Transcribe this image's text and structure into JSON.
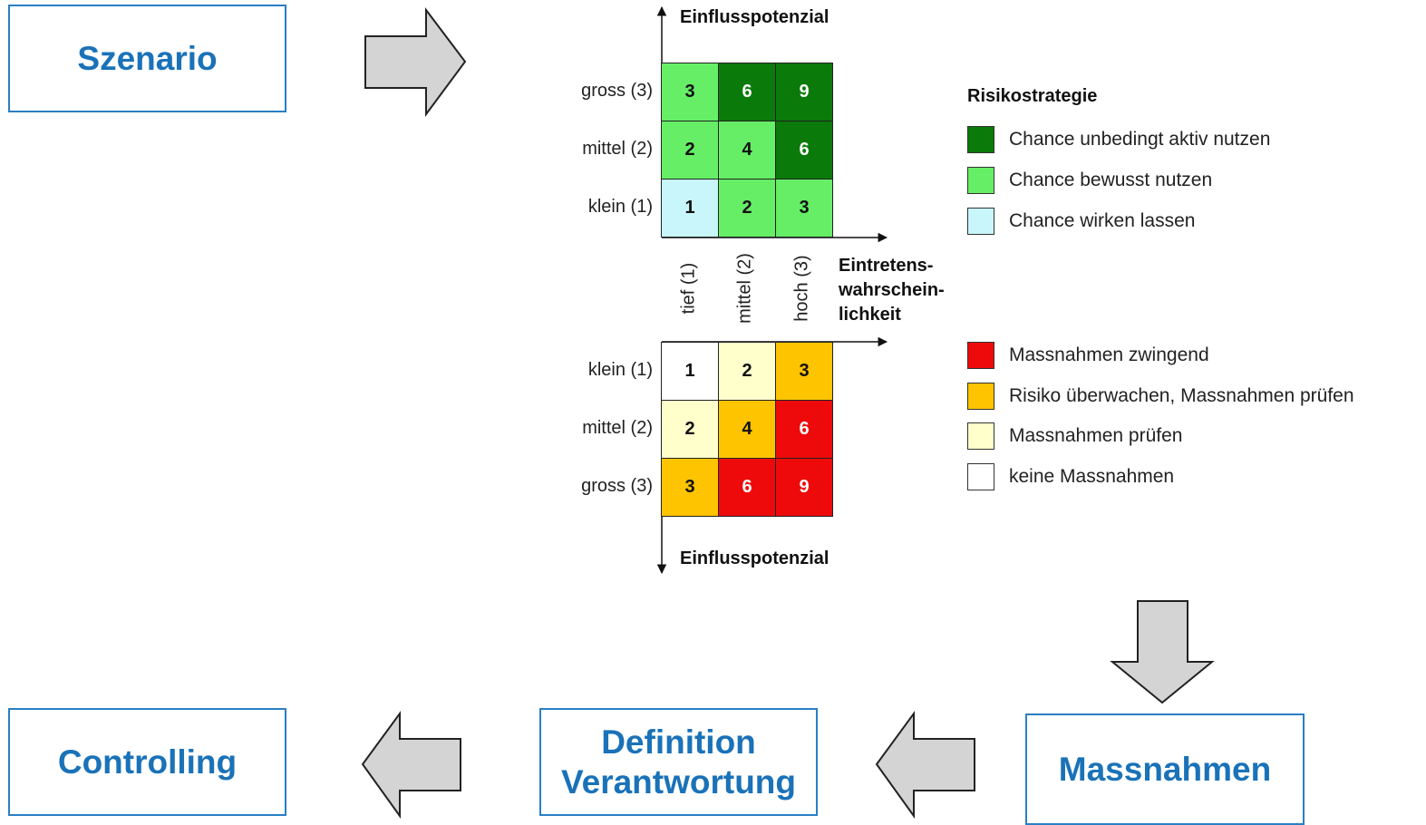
{
  "boxes": {
    "szenario": "Szenario",
    "controlling": "Controlling",
    "definition_line1": "Definition",
    "definition_line2": "Verantwortung",
    "massnahmen": "Massnahmen"
  },
  "matrix": {
    "axis_top": "Einflusspotenzial",
    "axis_bottom": "Einflusspotenzial",
    "axis_right_line1": "Eintretens-",
    "axis_right_line2": "wahrschein-",
    "axis_right_line3": "lichkeit",
    "col_labels": [
      "tief (1)",
      "mittel (2)",
      "hoch (3)"
    ],
    "chance_rows": [
      {
        "label": "gross (3)",
        "cells": [
          {
            "v": "3",
            "c": "#66ee66",
            "t": "#111111"
          },
          {
            "v": "6",
            "c": "#0a7a0a",
            "t": "#ffffff"
          },
          {
            "v": "9",
            "c": "#0a7a0a",
            "t": "#ffffff"
          }
        ]
      },
      {
        "label": "mittel (2)",
        "cells": [
          {
            "v": "2",
            "c": "#66ee66",
            "t": "#111111"
          },
          {
            "v": "4",
            "c": "#66ee66",
            "t": "#111111"
          },
          {
            "v": "6",
            "c": "#0a7a0a",
            "t": "#ffffff"
          }
        ]
      },
      {
        "label": "klein (1)",
        "cells": [
          {
            "v": "1",
            "c": "#c8f6fa",
            "t": "#111111"
          },
          {
            "v": "2",
            "c": "#66ee66",
            "t": "#111111"
          },
          {
            "v": "3",
            "c": "#66ee66",
            "t": "#111111"
          }
        ]
      }
    ],
    "risk_rows": [
      {
        "label": "klein (1)",
        "cells": [
          {
            "v": "1",
            "c": "#ffffff",
            "t": "#111111"
          },
          {
            "v": "2",
            "c": "#ffffcc",
            "t": "#111111"
          },
          {
            "v": "3",
            "c": "#ffc400",
            "t": "#111111"
          }
        ]
      },
      {
        "label": "mittel (2)",
        "cells": [
          {
            "v": "2",
            "c": "#ffffcc",
            "t": "#111111"
          },
          {
            "v": "4",
            "c": "#ffc400",
            "t": "#111111"
          },
          {
            "v": "6",
            "c": "#ee0a0a",
            "t": "#ffffff"
          }
        ]
      },
      {
        "label": "gross (3)",
        "cells": [
          {
            "v": "3",
            "c": "#ffc400",
            "t": "#111111"
          },
          {
            "v": "6",
            "c": "#ee0a0a",
            "t": "#ffffff"
          },
          {
            "v": "9",
            "c": "#ee0a0a",
            "t": "#ffffff"
          }
        ]
      }
    ]
  },
  "legend": {
    "title": "Risikostrategie",
    "chance_items": [
      {
        "label": "Chance unbedingt aktiv nutzen",
        "color": "#0a7a0a"
      },
      {
        "label": "Chance bewusst nutzen",
        "color": "#66ee66"
      },
      {
        "label": "Chance wirken lassen",
        "color": "#c8f6fa"
      }
    ],
    "risk_items": [
      {
        "label": "Massnahmen zwingend",
        "color": "#ee0a0a"
      },
      {
        "label": "Risiko überwachen, Massnahmen prüfen",
        "color": "#ffc400"
      },
      {
        "label": "Massnahmen prüfen",
        "color": "#ffffcc"
      },
      {
        "label": "keine Massnahmen",
        "color": "#ffffff"
      }
    ]
  }
}
